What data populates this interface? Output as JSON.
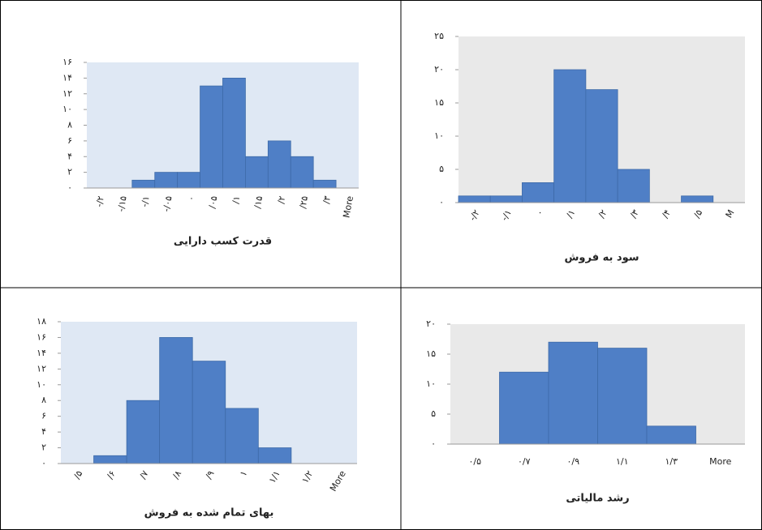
{
  "chart_data": [
    {
      "type": "bar",
      "xlabel": "قدرت کسب دارایی",
      "categories": [
        "-/۲",
        "-/۱۵",
        "-/۱",
        "-/۰۵",
        "۰",
        "/۰۵",
        "/۱",
        "/۱۵",
        "/۲",
        "/۲۵",
        "/۳",
        "More"
      ],
      "values": [
        0,
        0,
        1,
        2,
        2,
        13,
        14,
        4,
        6,
        4,
        1,
        0
      ],
      "ylim": [
        0,
        16
      ],
      "yticks": [
        {
          "value": 0,
          "label": "۰"
        },
        {
          "value": 2,
          "label": "۲"
        },
        {
          "value": 4,
          "label": "۴"
        },
        {
          "value": 6,
          "label": "۶"
        },
        {
          "value": 8,
          "label": "۸"
        },
        {
          "value": 10,
          "label": "۱۰"
        },
        {
          "value": 12,
          "label": "۱۲"
        },
        {
          "value": 14,
          "label": "۱۴"
        },
        {
          "value": 16,
          "label": "۱۶"
        }
      ],
      "color": "#4f7fc6",
      "plot_color": "#dfe8f4"
    },
    {
      "type": "bar",
      "xlabel": "سود به فروش",
      "categories": [
        "-/۲",
        "-/۱",
        "۰",
        "/۱",
        "/۲",
        "/۳",
        "/۴",
        "/۵",
        "M"
      ],
      "values": [
        1,
        1,
        3,
        20,
        17,
        5,
        0,
        1,
        0
      ],
      "ylim": [
        0,
        25
      ],
      "yticks": [
        {
          "value": 0,
          "label": "۰"
        },
        {
          "value": 5,
          "label": "۵"
        },
        {
          "value": 10,
          "label": "۱۰"
        },
        {
          "value": 15,
          "label": "۱۵"
        },
        {
          "value": 20,
          "label": "۲۰"
        },
        {
          "value": 25,
          "label": "۲۵"
        }
      ],
      "color": "#4f7fc6",
      "plot_color": "#e9e9e9"
    },
    {
      "type": "bar",
      "xlabel": "بهای تمام شده به فروش",
      "categories": [
        "/۵",
        "/۶",
        "/۷",
        "/۸",
        "/۹",
        "۱",
        "۱/۱",
        "۱/۲",
        "More"
      ],
      "values": [
        0,
        1,
        8,
        16,
        13,
        7,
        2,
        0,
        0
      ],
      "ylim": [
        0,
        18
      ],
      "yticks": [
        {
          "value": 0,
          "label": "۰"
        },
        {
          "value": 2,
          "label": "۲"
        },
        {
          "value": 4,
          "label": "۴"
        },
        {
          "value": 6,
          "label": "۶"
        },
        {
          "value": 8,
          "label": "۸"
        },
        {
          "value": 10,
          "label": "۱۰"
        },
        {
          "value": 12,
          "label": "۱۲"
        },
        {
          "value": 14,
          "label": "۱۴"
        },
        {
          "value": 16,
          "label": "۱۶"
        },
        {
          "value": 18,
          "label": "۱۸"
        }
      ],
      "color": "#4f7fc6",
      "plot_color": "#dfe8f4"
    },
    {
      "type": "bar",
      "xlabel": "رشد مالیاتی",
      "categories": [
        "۰/۵",
        "۰/۷",
        "۰/۹",
        "۱/۱",
        "۱/۳",
        "More"
      ],
      "values": [
        0,
        12,
        17,
        16,
        3,
        0
      ],
      "ylim": [
        0,
        20
      ],
      "yticks": [
        {
          "value": 0,
          "label": "۰"
        },
        {
          "value": 5,
          "label": "۵"
        },
        {
          "value": 10,
          "label": "۱۰"
        },
        {
          "value": 15,
          "label": "۱۵"
        },
        {
          "value": 20,
          "label": "۲۰"
        }
      ],
      "color": "#4f7fc6",
      "plot_color": "#e9e9e9"
    }
  ]
}
